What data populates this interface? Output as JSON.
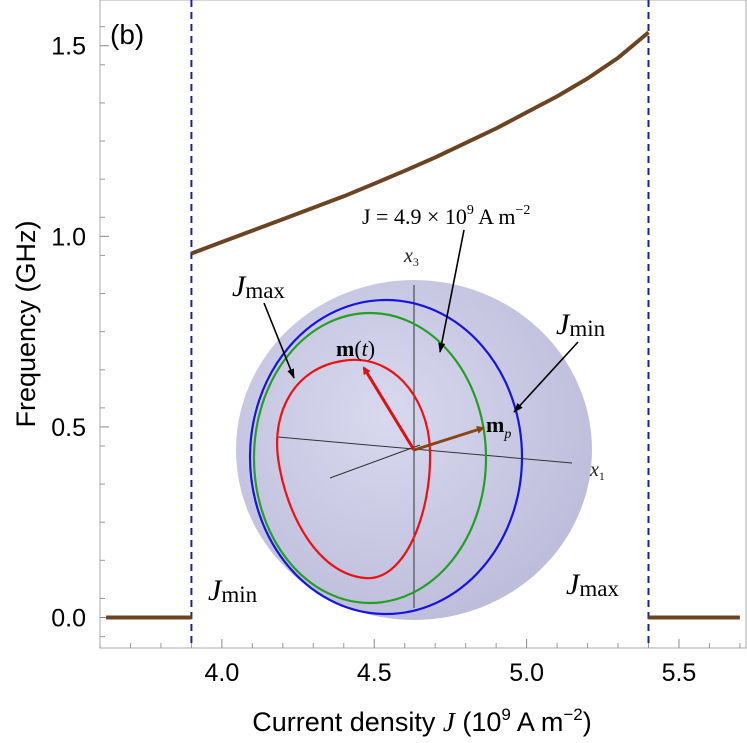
{
  "chart_data": {
    "type": "line",
    "panel_label": "(b)",
    "xlabel": {
      "text": "Current  density",
      "var": "J",
      "paren_open": "(10",
      "sup1": "9",
      "unit": " A m",
      "sup2": "−2",
      "paren_close": ")"
    },
    "ylabel": "Frequency   (GHz)",
    "xlim": [
      3.6,
      5.72
    ],
    "ylim": [
      -0.08,
      1.62
    ],
    "xticks": [
      "4.0",
      "4.5",
      "5.0",
      "5.5"
    ],
    "yticks": [
      "0.0",
      "0.5",
      "1.0",
      "1.5"
    ],
    "series": [
      {
        "x": [
          3.62,
          3.9
        ],
        "y": [
          0.0,
          0.0
        ]
      },
      {
        "x": [
          3.9,
          4.0,
          4.1,
          4.2,
          4.3,
          4.4,
          4.5,
          4.6,
          4.7,
          4.8,
          4.9,
          5.0,
          5.1,
          5.2,
          5.3,
          5.4
        ],
        "y": [
          0.955,
          0.985,
          1.015,
          1.045,
          1.075,
          1.105,
          1.138,
          1.172,
          1.207,
          1.245,
          1.283,
          1.325,
          1.367,
          1.414,
          1.468,
          1.535
        ]
      },
      {
        "x": [
          5.4,
          5.7
        ],
        "y": [
          0.0,
          0.0
        ]
      }
    ],
    "vlines": [
      3.9,
      5.4
    ],
    "annotations": {
      "jmin_bottom": {
        "main": "J",
        "sub": "min"
      },
      "jmax_bottom": {
        "main": "J",
        "sub": "max"
      }
    },
    "colors": {
      "curve": "#6b4522",
      "vline": "#1c2496",
      "sphere": "#c8c8e2",
      "orbit_max": "#ee1111",
      "orbit_mid": "#22a022",
      "orbit_min": "#1515e0",
      "arrow_m": "#e01010",
      "arrow_mp": "#8b4513"
    }
  },
  "inset": {
    "label_x3": {
      "main": "x",
      "sub": "3"
    },
    "label_x1": {
      "main": "x",
      "sub": "1"
    },
    "label_jmax": {
      "main": "J",
      "sub": "max"
    },
    "label_jmin": {
      "main": "J",
      "sub": "min"
    },
    "label_jmid": {
      "eq": "J = 4.9 × 10",
      "sup": "9",
      "unit": " A m",
      "sup2": "−2"
    },
    "label_mt": {
      "bold": "m",
      "rest": "(",
      "ital": "t",
      "close": ")"
    },
    "label_mp": {
      "bold": "m",
      "sub": "p"
    }
  }
}
